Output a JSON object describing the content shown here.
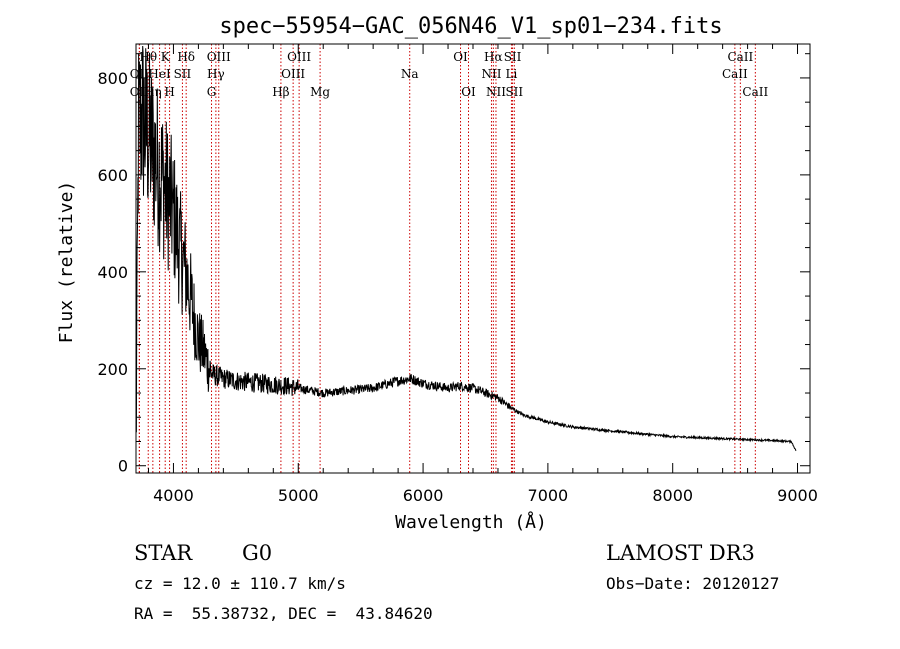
{
  "chart_data": {
    "type": "line",
    "title": "spec−55954−GAC_056N46_V1_sp01−234.fits",
    "xlabel": "Wavelength (Å)",
    "ylabel": "Flux (relative)",
    "xlim": [
      3700,
      9100
    ],
    "ylim": [
      -15,
      870
    ],
    "xticks": [
      4000,
      5000,
      6000,
      7000,
      8000,
      9000
    ],
    "yticks": [
      0,
      200,
      400,
      600,
      800
    ],
    "grid": false,
    "colors": {
      "line": "#000000",
      "marker": "#cc0000",
      "axes": "#000000"
    },
    "spectrum_anchors": {
      "x": [
        3700,
        3720,
        3750,
        3800,
        3850,
        3900,
        3950,
        4000,
        4050,
        4100,
        4150,
        4200,
        4250,
        4300,
        4400,
        4500,
        4700,
        4900,
        5000,
        5200,
        5400,
        5600,
        5800,
        5900,
        6000,
        6200,
        6300,
        6400,
        6500,
        6600,
        6700,
        6800,
        7000,
        7200,
        7500,
        8000,
        8500,
        8800,
        8950,
        8990
      ],
      "y": [
        70,
        700,
        720,
        680,
        640,
        600,
        560,
        520,
        450,
        400,
        330,
        260,
        230,
        190,
        180,
        175,
        170,
        165,
        160,
        150,
        155,
        160,
        175,
        180,
        170,
        160,
        165,
        160,
        150,
        140,
        120,
        105,
        90,
        80,
        72,
        60,
        55,
        52,
        50,
        30
      ]
    },
    "lines": [
      {
        "label": "OII",
        "x": 3727,
        "row": 2
      },
      {
        "label": "Hθ",
        "x": 3798,
        "row": 0
      },
      {
        "label": "OII",
        "x": 3727,
        "row": 1
      },
      {
        "label": "Hη",
        "x": 3835,
        "row": 2
      },
      {
        "label": "K",
        "x": 3934,
        "row": 0
      },
      {
        "label": "HeI",
        "x": 3889,
        "row": 1
      },
      {
        "label": "H",
        "x": 3969,
        "row": 2
      },
      {
        "label": "Hδ",
        "x": 4102,
        "row": 0
      },
      {
        "label": "SII",
        "x": 4072,
        "row": 1
      },
      {
        "label": "OIII",
        "x": 4363,
        "row": 0
      },
      {
        "label": "Hγ",
        "x": 4340,
        "row": 1
      },
      {
        "label": "G",
        "x": 4305,
        "row": 2
      },
      {
        "label": "OIII",
        "x": 5007,
        "row": 0
      },
      {
        "label": "OIII",
        "x": 4959,
        "row": 1
      },
      {
        "label": "Hβ",
        "x": 4861,
        "row": 2
      },
      {
        "label": "Mg",
        "x": 5175,
        "row": 2
      },
      {
        "label": "Na",
        "x": 5893,
        "row": 1
      },
      {
        "label": "OI",
        "x": 6300,
        "row": 0
      },
      {
        "label": "OI",
        "x": 6364,
        "row": 2
      },
      {
        "label": "Hα",
        "x": 6563,
        "row": 0
      },
      {
        "label": "NII",
        "x": 6548,
        "row": 1
      },
      {
        "label": "NII",
        "x": 6584,
        "row": 2
      },
      {
        "label": "SII",
        "x": 6717,
        "row": 0
      },
      {
        "label": "Li",
        "x": 6708,
        "row": 1
      },
      {
        "label": "SII",
        "x": 6731,
        "row": 2
      },
      {
        "label": "CaII",
        "x": 8542,
        "row": 0
      },
      {
        "label": "CaII",
        "x": 8498,
        "row": 1
      },
      {
        "label": "CaII",
        "x": 8662,
        "row": 2
      }
    ]
  },
  "info": {
    "object_class": "STAR",
    "subclass": "G0",
    "survey": "LAMOST DR3",
    "redshift_text": "cz = 12.0 ± 110.7 km/s",
    "obs_date": "Obs−Date: 20120127",
    "coords": "RA =  55.38732, DEC =  43.84620"
  }
}
